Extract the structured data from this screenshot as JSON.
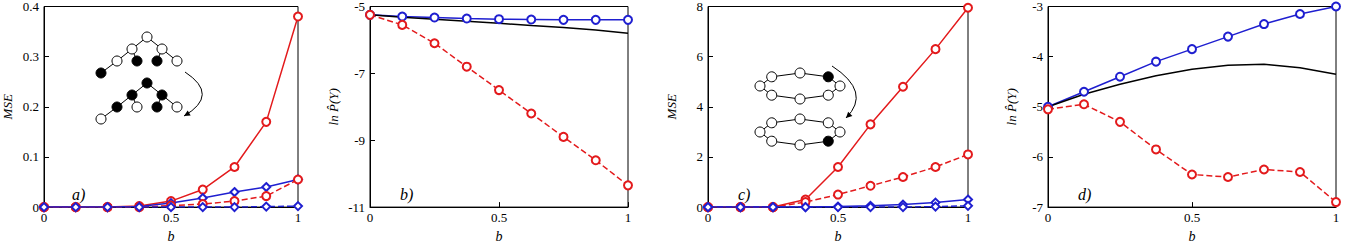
{
  "chart_data": [
    {
      "type": "line",
      "panel_label": "a)",
      "x_label": "b",
      "y_label": "MSE",
      "x": [
        0,
        0.125,
        0.25,
        0.375,
        0.5,
        0.625,
        0.75,
        0.875,
        1
      ],
      "xlim": [
        0,
        1
      ],
      "xticks": [
        0,
        0.5,
        1
      ],
      "ylim": [
        0,
        0.4
      ],
      "yticks": [
        0,
        0.1,
        0.2,
        0.3,
        0.4
      ],
      "series": [
        {
          "color": "#e31a1c",
          "line_style": "solid",
          "marker": "circle",
          "values": [
            0,
            0,
            0,
            0.002,
            0.012,
            0.035,
            0.08,
            0.17,
            0.38
          ]
        },
        {
          "color": "#1f1fd0",
          "line_style": "solid",
          "marker": "diamond",
          "values": [
            0,
            0,
            0,
            0.001,
            0.008,
            0.018,
            0.03,
            0.04,
            0.055
          ]
        },
        {
          "color": "#e31a1c",
          "line_style": "dashed",
          "marker": "circle",
          "values": [
            0,
            0,
            0,
            0,
            0.003,
            0.006,
            0.012,
            0.022,
            0.055
          ]
        },
        {
          "color": "#1f1fd0",
          "line_style": "dashed",
          "marker": "diamond",
          "values": [
            0,
            0,
            0,
            0,
            0,
            0,
            0,
            0.001,
            0.002
          ]
        }
      ]
    },
    {
      "type": "line",
      "panel_label": "b)",
      "x_label": "b",
      "y_label": "ln P̂(Y)",
      "x": [
        0,
        0.125,
        0.25,
        0.375,
        0.5,
        0.625,
        0.75,
        0.875,
        1
      ],
      "xlim": [
        0,
        1
      ],
      "xticks": [
        0,
        0.5,
        1
      ],
      "ylim": [
        -11,
        -5
      ],
      "yticks": [
        -11,
        -9,
        -7,
        -5
      ],
      "series": [
        {
          "color": "#1f1fd0",
          "line_style": "solid",
          "marker": "circle",
          "values": [
            -5.25,
            -5.3,
            -5.33,
            -5.36,
            -5.38,
            -5.39,
            -5.4,
            -5.4,
            -5.4
          ]
        },
        {
          "color": "#000000",
          "line_style": "solid",
          "marker": "none",
          "values": [
            -5.25,
            -5.32,
            -5.38,
            -5.44,
            -5.5,
            -5.57,
            -5.63,
            -5.7,
            -5.8
          ]
        },
        {
          "color": "#e31a1c",
          "line_style": "dashed",
          "marker": "circle",
          "values": [
            -5.25,
            -5.55,
            -6.1,
            -6.8,
            -7.5,
            -8.2,
            -8.9,
            -9.6,
            -10.35
          ]
        }
      ]
    },
    {
      "type": "line",
      "panel_label": "c)",
      "x_label": "b",
      "y_label": "MSE",
      "x": [
        0,
        0.125,
        0.25,
        0.375,
        0.5,
        0.625,
        0.75,
        0.875,
        1
      ],
      "xlim": [
        0,
        1
      ],
      "xticks": [
        0,
        0.5,
        1
      ],
      "ylim": [
        0,
        8
      ],
      "yticks": [
        0,
        2,
        4,
        6,
        8
      ],
      "series": [
        {
          "color": "#e31a1c",
          "line_style": "solid",
          "marker": "circle",
          "values": [
            0,
            0,
            0,
            0.3,
            1.6,
            3.3,
            4.8,
            6.3,
            7.95
          ]
        },
        {
          "color": "#e31a1c",
          "line_style": "dashed",
          "marker": "circle",
          "values": [
            0,
            0,
            0,
            0.2,
            0.5,
            0.85,
            1.2,
            1.6,
            2.1
          ]
        },
        {
          "color": "#1f1fd0",
          "line_style": "solid",
          "marker": "diamond",
          "values": [
            0,
            0,
            0,
            0,
            0.02,
            0.05,
            0.1,
            0.18,
            0.3
          ]
        },
        {
          "color": "#1f1fd0",
          "line_style": "dashed",
          "marker": "diamond",
          "values": [
            0,
            0,
            0,
            0,
            0,
            0,
            0,
            0.02,
            0.05
          ]
        }
      ]
    },
    {
      "type": "line",
      "panel_label": "d)",
      "x_label": "b",
      "y_label": "ln P̂(Y)",
      "x": [
        0,
        0.125,
        0.25,
        0.375,
        0.5,
        0.625,
        0.75,
        0.875,
        1
      ],
      "xlim": [
        0,
        1
      ],
      "xticks": [
        0,
        0.5,
        1
      ],
      "ylim": [
        -7,
        -3
      ],
      "yticks": [
        -7,
        -6,
        -5,
        -4,
        -3
      ],
      "series": [
        {
          "color": "#1f1fd0",
          "line_style": "solid",
          "marker": "circle",
          "values": [
            -5,
            -4.7,
            -4.4,
            -4.1,
            -3.85,
            -3.6,
            -3.35,
            -3.15,
            -3.0
          ]
        },
        {
          "color": "#000000",
          "line_style": "solid",
          "marker": "none",
          "values": [
            -5,
            -4.75,
            -4.55,
            -4.38,
            -4.25,
            -4.17,
            -4.15,
            -4.22,
            -4.35
          ]
        },
        {
          "color": "#e31a1c",
          "line_style": "dashed",
          "marker": "circle",
          "values": [
            -5.05,
            -4.95,
            -5.3,
            -5.85,
            -6.35,
            -6.4,
            -6.25,
            -6.3,
            -6.9
          ]
        }
      ]
    }
  ]
}
